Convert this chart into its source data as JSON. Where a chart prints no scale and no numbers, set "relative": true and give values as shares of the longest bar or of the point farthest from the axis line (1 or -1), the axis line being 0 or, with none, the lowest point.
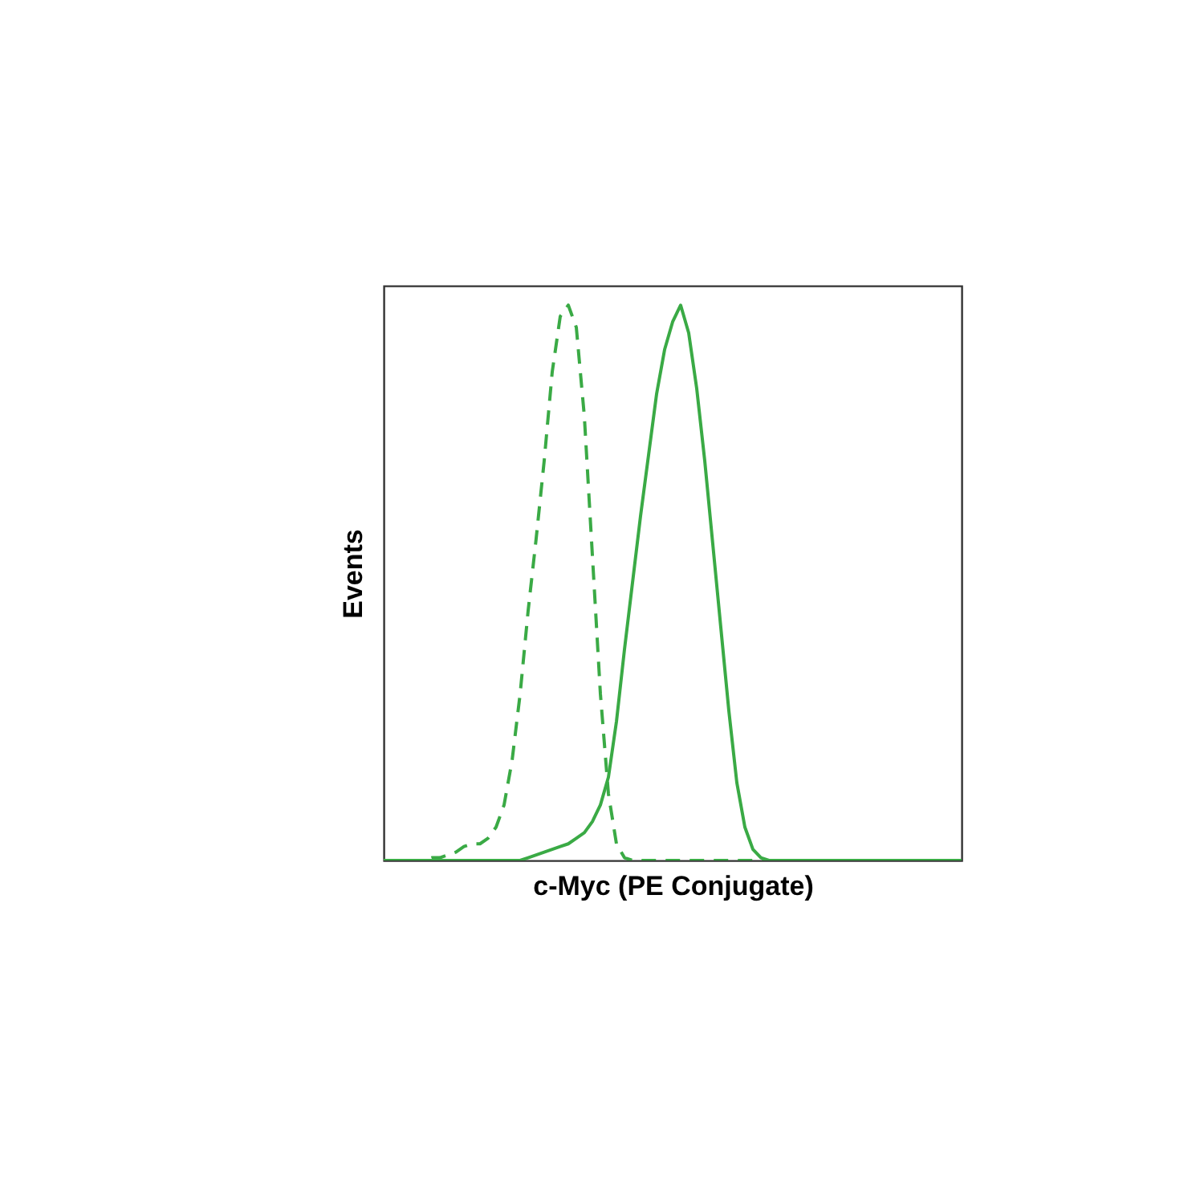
{
  "chart_data": {
    "type": "line",
    "relative": true,
    "xlabel": "c-Myc (PE Conjugate)",
    "ylabel": "Events",
    "categories": [
      null,
      null,
      null,
      null,
      null,
      null,
      null,
      null,
      null,
      null,
      null,
      null,
      null,
      null,
      null,
      null,
      null,
      null,
      null,
      null,
      null,
      null,
      null,
      null,
      null,
      null,
      null,
      null,
      null,
      null,
      null,
      null,
      null,
      null,
      null,
      null,
      null,
      null,
      null,
      null,
      null,
      null,
      null,
      null,
      null,
      null,
      null,
      null,
      null,
      null,
      null,
      null,
      null,
      null,
      null,
      null,
      null,
      null,
      null,
      null,
      null,
      null,
      null,
      null,
      null,
      null,
      null,
      null,
      null,
      null,
      null,
      null,
      null
    ],
    "series": [
      {
        "color": "#3aaa45",
        "line_style": "dashed",
        "values": [
          0,
          0,
          0,
          0,
          0,
          0,
          0.005,
          0.005,
          0.01,
          0.015,
          0.025,
          0.03,
          0.03,
          0.04,
          0.06,
          0.1,
          0.18,
          0.3,
          0.45,
          0.58,
          0.72,
          0.88,
          0.98,
          1.0,
          0.96,
          0.8,
          0.55,
          0.3,
          0.12,
          0.03,
          0.005,
          0,
          0,
          0,
          0,
          0,
          0,
          0,
          0,
          0,
          0,
          0,
          0,
          0,
          0,
          0,
          0,
          0,
          0,
          0,
          0,
          0,
          0,
          0,
          0,
          0,
          0,
          0,
          0,
          0,
          0,
          0,
          0,
          0,
          0,
          0,
          0,
          0,
          0,
          0,
          0,
          0,
          0
        ]
      },
      {
        "color": "#3aaa45",
        "line_style": "solid",
        "values": [
          0,
          0,
          0,
          0,
          0,
          0,
          0,
          0,
          0,
          0,
          0,
          0,
          0,
          0,
          0,
          0,
          0,
          0,
          0.005,
          0.01,
          0.015,
          0.02,
          0.025,
          0.03,
          0.04,
          0.05,
          0.07,
          0.1,
          0.15,
          0.25,
          0.38,
          0.5,
          0.62,
          0.73,
          0.84,
          0.92,
          0.97,
          1.0,
          0.95,
          0.85,
          0.72,
          0.57,
          0.42,
          0.27,
          0.14,
          0.06,
          0.02,
          0.005,
          0,
          0,
          0,
          0,
          0,
          0,
          0,
          0,
          0,
          0,
          0,
          0,
          0,
          0,
          0,
          0,
          0,
          0,
          0,
          0,
          0,
          0,
          0,
          0,
          0
        ]
      }
    ]
  }
}
